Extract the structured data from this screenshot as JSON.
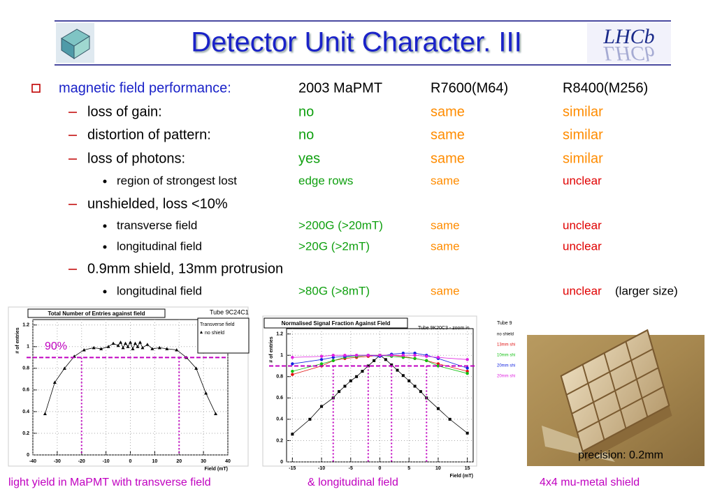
{
  "header": {
    "title": "Detector Unit Character. III",
    "logo": "LHCb"
  },
  "table": {
    "rows": [
      [
        "magnetic field performance:",
        "2003 MaPMT",
        "R7600(M64)",
        "R8400(M256)"
      ],
      [
        "loss of gain:",
        "no",
        "same",
        "similar"
      ],
      [
        "distortion of pattern:",
        "no",
        "same",
        "similar"
      ],
      [
        "loss of photons:",
        "yes",
        "same",
        "similar"
      ],
      [
        "region of strongest lost",
        "edge rows",
        "same",
        "unclear"
      ],
      [
        "unshielded, loss <10%"
      ],
      [
        "transverse field",
        ">200G (>20mT)",
        "same",
        "unclear"
      ],
      [
        "longitudinal field",
        ">20G (>2mT)",
        "same",
        "unclear"
      ],
      [
        "0.9mm shield, 13mm protrusion"
      ],
      [
        "longitudinal field",
        ">80G (>8mT)",
        "same",
        "unclear",
        "(larger size)"
      ]
    ]
  },
  "charts": [
    {
      "type": "scatter",
      "title": "Total Number of Entries against field",
      "tube": "Tube 9C24C1",
      "legend_title": "Transverse field",
      "xlabel": "Field (mT)",
      "ylabel": "# of entries",
      "annotation": "90%",
      "threshold": 0.9,
      "vlines": [
        -20,
        20
      ],
      "xlim": [
        -40,
        40
      ],
      "ylim": [
        0,
        1.25
      ],
      "xticks": [
        -40,
        -30,
        -20,
        -10,
        0,
        10,
        20,
        30,
        40
      ],
      "yticks": [
        0,
        0.2,
        0.4,
        0.6,
        0.8,
        1,
        1.2
      ],
      "series": [
        {
          "name": "no shield",
          "color": "#000000",
          "x": [
            -35,
            -31,
            -27,
            -23,
            -19,
            -15,
            -12,
            -9,
            -7,
            -5,
            -4,
            -3,
            -2,
            -1,
            0,
            1,
            2,
            3,
            4,
            5,
            7,
            9,
            12,
            15,
            19,
            23,
            27,
            31,
            35
          ],
          "values": [
            0.38,
            0.67,
            0.8,
            0.91,
            0.97,
            0.99,
            0.98,
            1.0,
            1.03,
            1.01,
            1.04,
            0.99,
            1.03,
            1.0,
            1.04,
            0.98,
            1.03,
            1.0,
            1.04,
            0.99,
            1.02,
            0.98,
            0.99,
            0.98,
            0.97,
            0.9,
            0.8,
            0.57,
            0.38
          ]
        }
      ]
    },
    {
      "type": "line",
      "title": "Normalised Signal Fraction Against Field",
      "tube": "Tube 9K20C3 - zoom in",
      "legend_title": "Tube 9",
      "xlabel": "Field (mT)",
      "ylabel": "# of entries",
      "threshold": 0.9,
      "vlines": [
        -8,
        -2,
        2,
        8
      ],
      "xlim": [
        -16,
        16
      ],
      "ylim": [
        0,
        1.25
      ],
      "xticks": [
        -15,
        -10,
        -5,
        0,
        5,
        10,
        15
      ],
      "yticks": [
        0,
        0.2,
        0.4,
        0.6,
        0.8,
        1,
        1.2
      ],
      "series": [
        {
          "name": "no shield",
          "color": "#000000",
          "x": [
            -15,
            -12,
            -10,
            -8,
            -7,
            -6,
            -5,
            -4,
            -3,
            -2,
            -1,
            0,
            1,
            2,
            3,
            4,
            5,
            6,
            7,
            8,
            10,
            12,
            15
          ],
          "values": [
            0.26,
            0.4,
            0.52,
            0.6,
            0.66,
            0.71,
            0.76,
            0.8,
            0.85,
            0.9,
            0.95,
            1.0,
            0.96,
            0.91,
            0.86,
            0.81,
            0.76,
            0.71,
            0.66,
            0.6,
            0.5,
            0.4,
            0.27
          ]
        },
        {
          "name": "13mm shi",
          "color": "#e01010",
          "x": [
            -15,
            -10,
            -8,
            -6,
            -4,
            -2,
            0,
            2,
            4,
            6,
            8,
            10,
            15
          ],
          "values": [
            0.82,
            0.9,
            0.95,
            0.97,
            0.98,
            0.99,
            1.0,
            1.0,
            0.99,
            0.97,
            0.95,
            0.92,
            0.85
          ]
        },
        {
          "name": "10mm shi",
          "color": "#10c010",
          "x": [
            -15,
            -10,
            -8,
            -6,
            -4,
            -2,
            0,
            2,
            4,
            6,
            8,
            10,
            15
          ],
          "values": [
            0.85,
            0.92,
            0.95,
            0.98,
            0.99,
            1.0,
            1.0,
            0.99,
            0.98,
            0.97,
            0.95,
            0.9,
            0.83
          ]
        },
        {
          "name": "20mm shi",
          "color": "#1020e0",
          "x": [
            -15,
            -10,
            -8,
            -6,
            -4,
            -2,
            0,
            2,
            4,
            6,
            8,
            10,
            15
          ],
          "values": [
            0.92,
            0.96,
            0.98,
            0.99,
            1.0,
            1.0,
            0.99,
            1.01,
            1.02,
            1.02,
            1.0,
            0.97,
            0.88
          ]
        },
        {
          "name": "20mm shi",
          "color": "#e020e0",
          "x": [
            -15,
            -10,
            -8,
            -6,
            -4,
            -2,
            0,
            2,
            4,
            6,
            8,
            10,
            15
          ],
          "values": [
            0.98,
            0.99,
            1.0,
            1.0,
            1.0,
            1.0,
            1.0,
            1.0,
            1.0,
            1.0,
            0.99,
            0.98,
            0.96
          ]
        }
      ]
    }
  ],
  "photo": {
    "caption": "precision: 0.2mm"
  },
  "captions": [
    "light yield in MaPMT with transverse field",
    "& longitudinal field",
    "4x4 mu-metal shield"
  ]
}
